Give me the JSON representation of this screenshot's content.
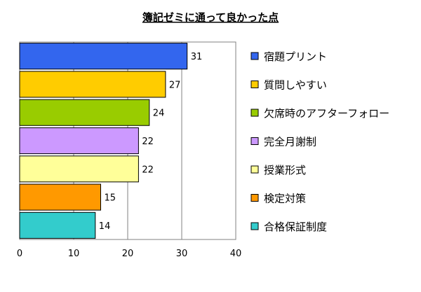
{
  "chart_data": {
    "type": "bar",
    "orientation": "horizontal",
    "title": "簿記ゼミに通って良かった点",
    "categories": [
      "宿題プリント",
      "質問しやすい",
      "欠席時のアフターフォロー",
      "完全月謝制",
      "授業形式",
      "検定対策",
      "合格保証制度"
    ],
    "values": [
      31,
      27,
      24,
      22,
      22,
      15,
      14
    ],
    "colors": [
      "#3366ee",
      "#ffcc00",
      "#99cc00",
      "#cc99ff",
      "#ffff99",
      "#ff9900",
      "#33cccc"
    ],
    "xlim": [
      0,
      40
    ],
    "xticks": [
      0,
      10,
      20,
      30,
      40
    ],
    "grid": true,
    "legend_position": "right"
  }
}
